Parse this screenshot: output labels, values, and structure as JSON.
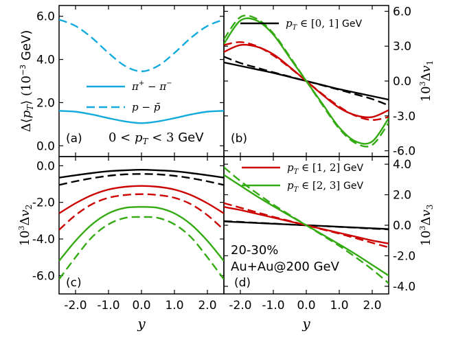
{
  "colors": {
    "black": "#000000",
    "red": "#cc0000",
    "green": "#33aa11",
    "cyan": "#11aadd"
  },
  "chart_data": [
    {
      "panel": "a",
      "type": "line",
      "tag": "(a)",
      "annotation": "0 < p_T < 3 GeV",
      "ylabel": "Δ⟨p_T⟩ (10^-3 GeV)",
      "xlim": [
        -2.5,
        2.5
      ],
      "ylim": [
        -0.5,
        6.5
      ],
      "yticks": [
        "0.0",
        "2.0",
        "4.0",
        "6.0"
      ],
      "legend": [
        {
          "label": "π⁺ − π⁻",
          "style": "solid",
          "color": "cyan"
        },
        {
          "label": "p − p̄",
          "style": "dashed",
          "color": "cyan"
        }
      ],
      "x": [
        -2.5,
        -2.0,
        -1.5,
        -1.0,
        -0.5,
        0.0,
        0.5,
        1.0,
        1.5,
        2.0,
        2.5
      ],
      "series": [
        {
          "name": "π⁺ − π⁻",
          "style": "solid",
          "color": "cyan",
          "values": [
            1.62,
            1.58,
            1.45,
            1.28,
            1.13,
            1.05,
            1.13,
            1.28,
            1.45,
            1.58,
            1.62
          ]
        },
        {
          "name": "p − p̄",
          "style": "dashed",
          "color": "cyan",
          "values": [
            5.85,
            5.55,
            5.0,
            4.3,
            3.7,
            3.45,
            3.7,
            4.3,
            5.0,
            5.55,
            5.85
          ]
        }
      ]
    },
    {
      "panel": "b",
      "type": "line",
      "tag": "(b)",
      "ylabel": "10^3 Δv_1",
      "xlim": [
        -2.5,
        2.5
      ],
      "ylim": [
        -6.5,
        6.5
      ],
      "yticks": [
        "6.0",
        "3.0",
        "0.0",
        "-3.0",
        "-6.0"
      ],
      "legend": [
        {
          "label": "p_T ∈ [0, 1] GeV",
          "style": "solid",
          "color": "black"
        }
      ],
      "x": [
        -2.5,
        -2.0,
        -1.5,
        -1.0,
        -0.5,
        0.0,
        0.5,
        1.0,
        1.5,
        2.0,
        2.5
      ],
      "series": [
        {
          "name": "[0,1] solid",
          "style": "solid",
          "color": "black",
          "values": [
            1.6,
            1.3,
            1.0,
            0.7,
            0.35,
            0.0,
            -0.35,
            -0.7,
            -1.0,
            -1.3,
            -1.6
          ]
        },
        {
          "name": "[0,1] dashed",
          "style": "dashed",
          "color": "black",
          "values": [
            2.1,
            1.55,
            1.15,
            0.75,
            0.38,
            0.0,
            -0.38,
            -0.75,
            -1.15,
            -1.55,
            -2.1
          ]
        },
        {
          "name": "[1,2] solid",
          "style": "solid",
          "color": "red",
          "values": [
            2.5,
            3.1,
            2.95,
            2.3,
            1.2,
            0.0,
            -1.2,
            -2.3,
            -2.95,
            -3.1,
            -2.5
          ]
        },
        {
          "name": "[1,2] dashed",
          "style": "dashed",
          "color": "red",
          "values": [
            3.1,
            3.35,
            3.0,
            2.2,
            1.15,
            0.0,
            -1.15,
            -2.2,
            -3.0,
            -3.35,
            -3.1
          ]
        },
        {
          "name": "[2,3] solid",
          "style": "solid",
          "color": "green",
          "values": [
            3.2,
            5.2,
            5.2,
            4.0,
            2.0,
            0.0,
            -2.0,
            -4.0,
            -5.2,
            -5.2,
            -3.2
          ]
        },
        {
          "name": "[2,3] dashed",
          "style": "dashed",
          "color": "green",
          "values": [
            3.6,
            5.5,
            5.35,
            4.1,
            2.1,
            0.0,
            -2.1,
            -4.1,
            -5.35,
            -5.5,
            -3.6
          ]
        }
      ]
    },
    {
      "panel": "c",
      "type": "line",
      "tag": "(c)",
      "ylabel": "10^3 Δv_2",
      "xlabel": "y",
      "xlim": [
        -2.5,
        2.5
      ],
      "ylim": [
        -7.0,
        0.5
      ],
      "xticks": [
        "-2.0",
        "-1.0",
        "0.0",
        "1.0",
        "2.0"
      ],
      "yticks": [
        "0.0",
        "-2.0",
        "-4.0",
        "-6.0"
      ],
      "x": [
        -2.5,
        -2.0,
        -1.5,
        -1.0,
        -0.5,
        0.0,
        0.5,
        1.0,
        1.5,
        2.0,
        2.5
      ],
      "series": [
        {
          "name": "[0,1] solid",
          "style": "solid",
          "color": "black",
          "values": [
            -0.65,
            -0.52,
            -0.4,
            -0.3,
            -0.25,
            -0.22,
            -0.25,
            -0.3,
            -0.4,
            -0.52,
            -0.65
          ]
        },
        {
          "name": "[0,1] dashed",
          "style": "dashed",
          "color": "black",
          "values": [
            -1.05,
            -0.85,
            -0.68,
            -0.55,
            -0.47,
            -0.45,
            -0.47,
            -0.55,
            -0.68,
            -0.85,
            -1.05
          ]
        },
        {
          "name": "[1,2] solid",
          "style": "solid",
          "color": "red",
          "values": [
            -2.6,
            -2.05,
            -1.6,
            -1.3,
            -1.15,
            -1.1,
            -1.15,
            -1.3,
            -1.6,
            -2.05,
            -2.6
          ]
        },
        {
          "name": "[1,2] dashed",
          "style": "dashed",
          "color": "red",
          "values": [
            -3.5,
            -2.7,
            -2.1,
            -1.75,
            -1.6,
            -1.55,
            -1.6,
            -1.75,
            -2.1,
            -2.7,
            -3.5
          ]
        },
        {
          "name": "[2,3] solid",
          "style": "solid",
          "color": "green",
          "values": [
            -5.2,
            -4.1,
            -3.2,
            -2.6,
            -2.3,
            -2.25,
            -2.3,
            -2.6,
            -3.2,
            -4.1,
            -5.2
          ]
        },
        {
          "name": "[2,3] dashed",
          "style": "dashed",
          "color": "green",
          "values": [
            -6.2,
            -5.0,
            -3.9,
            -3.2,
            -2.85,
            -2.8,
            -2.85,
            -3.2,
            -3.9,
            -5.0,
            -6.2
          ]
        }
      ]
    },
    {
      "panel": "d",
      "type": "line",
      "tag": "(d)",
      "annotation_lines": [
        "20-30%",
        "Au+Au@200 GeV"
      ],
      "ylabel": "10^3 Δv_3",
      "xlabel": "y",
      "xlim": [
        -2.5,
        2.5
      ],
      "ylim": [
        -4.5,
        4.5
      ],
      "xticks": [
        "-2.0",
        "-1.0",
        "0.0",
        "1.0",
        "2.0"
      ],
      "yticks": [
        "4.0",
        "2.0",
        "0.0",
        "-2.0",
        "-4.0"
      ],
      "legend": [
        {
          "label": "p_T ∈ [1, 2] GeV",
          "style": "solid",
          "color": "red"
        },
        {
          "label": "p_T ∈ [2, 3] GeV",
          "style": "solid",
          "color": "green"
        }
      ],
      "x": [
        -2.5,
        -2.0,
        -1.5,
        -1.0,
        -0.5,
        0.0,
        0.5,
        1.0,
        1.5,
        2.0,
        2.5
      ],
      "series": [
        {
          "name": "[0,1] solid",
          "style": "solid",
          "color": "black",
          "values": [
            0.25,
            0.2,
            0.15,
            0.1,
            0.05,
            0.0,
            -0.05,
            -0.1,
            -0.15,
            -0.2,
            -0.25
          ]
        },
        {
          "name": "[0,1] dashed",
          "style": "dashed",
          "color": "black",
          "values": [
            0.27,
            0.22,
            0.16,
            0.11,
            0.05,
            0.0,
            -0.05,
            -0.11,
            -0.16,
            -0.22,
            -0.27
          ]
        },
        {
          "name": "[1,2] solid",
          "style": "solid",
          "color": "red",
          "values": [
            1.2,
            1.0,
            0.75,
            0.5,
            0.25,
            0.0,
            -0.25,
            -0.5,
            -0.75,
            -1.0,
            -1.2
          ]
        },
        {
          "name": "[1,2] dashed",
          "style": "dashed",
          "color": "red",
          "values": [
            1.45,
            1.15,
            0.85,
            0.55,
            0.28,
            0.0,
            -0.28,
            -0.55,
            -0.85,
            -1.15,
            -1.45
          ]
        },
        {
          "name": "[2,3] solid",
          "style": "solid",
          "color": "green",
          "values": [
            3.3,
            2.6,
            1.9,
            1.25,
            0.62,
            0.0,
            -0.62,
            -1.25,
            -1.9,
            -2.6,
            -3.3
          ]
        },
        {
          "name": "[2,3] dashed",
          "style": "dashed",
          "color": "green",
          "values": [
            3.8,
            2.9,
            2.1,
            1.35,
            0.67,
            0.0,
            -0.67,
            -1.35,
            -2.1,
            -2.9,
            -3.8
          ]
        }
      ]
    }
  ]
}
